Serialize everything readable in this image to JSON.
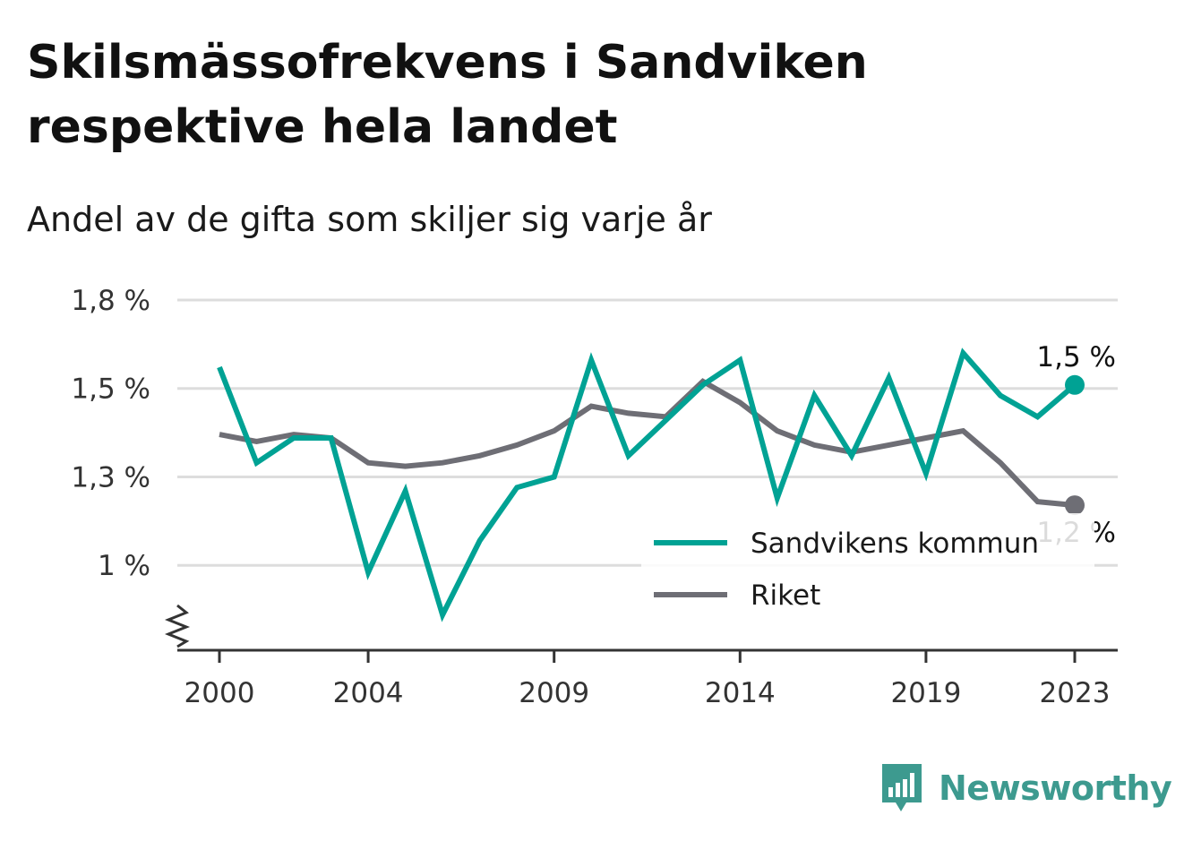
{
  "colors": {
    "sandviken": "#00a294",
    "riket": "#6e6e75",
    "grid": "#dddddd",
    "axis": "#333333",
    "brand": "#3d9a8f"
  },
  "chart_data": {
    "type": "line",
    "title": "Skilsmässofrekvens i Sandviken respektive hela landet",
    "subtitle": "Andel av de gifta som skiljer sig varje år",
    "x": [
      2000,
      2001,
      2002,
      2003,
      2004,
      2005,
      2006,
      2007,
      2008,
      2009,
      2010,
      2011,
      2012,
      2013,
      2014,
      2015,
      2016,
      2017,
      2018,
      2019,
      2020,
      2021,
      2022,
      2023
    ],
    "x_ticks": [
      2000,
      2004,
      2009,
      2014,
      2019,
      2023
    ],
    "y_ticks": [
      {
        "value": 1.0,
        "label": "1 %"
      },
      {
        "value": 1.25,
        "label": "1,3 %"
      },
      {
        "value": 1.5,
        "label": "1,5 %"
      },
      {
        "value": 1.75,
        "label": "1,8 %"
      }
    ],
    "ylim": [
      0.76,
      1.75
    ],
    "axis_break": true,
    "grid": true,
    "legend_position": "bottom-right",
    "series": [
      {
        "name": "Sandvikens kommun",
        "color": "#00a294",
        "values": [
          1.56,
          1.29,
          1.36,
          1.36,
          0.98,
          1.21,
          0.86,
          1.07,
          1.22,
          1.25,
          1.58,
          1.31,
          1.41,
          1.51,
          1.58,
          1.19,
          1.48,
          1.31,
          1.53,
          1.26,
          1.6,
          1.48,
          1.42,
          1.51
        ],
        "end_label": "1,5 %"
      },
      {
        "name": "Riket",
        "color": "#6e6e75",
        "values": [
          1.37,
          1.35,
          1.37,
          1.36,
          1.29,
          1.28,
          1.29,
          1.31,
          1.34,
          1.38,
          1.45,
          1.43,
          1.42,
          1.52,
          1.46,
          1.38,
          1.34,
          1.32,
          1.34,
          1.36,
          1.38,
          1.29,
          1.18,
          1.17
        ],
        "end_label": "1,2 %"
      }
    ]
  },
  "brand": {
    "name": "Newsworthy",
    "icon": "bar-chart-speech-bubble-icon"
  }
}
